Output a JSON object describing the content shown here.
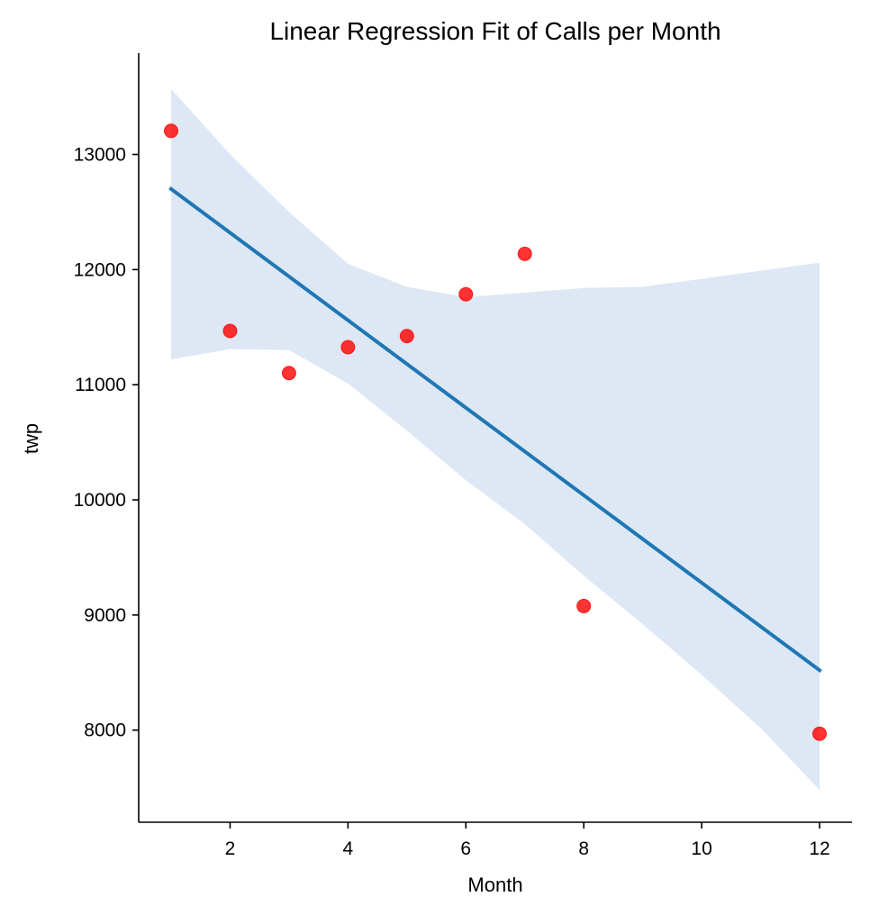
{
  "chart_data": {
    "type": "scatter",
    "title": "Linear Regression Fit of Calls per Month",
    "xlabel": "Month",
    "ylabel": "twp",
    "xlim": [
      0.45,
      12.55
    ],
    "ylim": [
      7200,
      13880
    ],
    "xticks": [
      2,
      4,
      6,
      8,
      10,
      12
    ],
    "yticks": [
      8000,
      9000,
      10000,
      11000,
      12000,
      13000
    ],
    "grid": false,
    "legend": "none",
    "colors": {
      "points": "#ff0000",
      "fit_line": "#1f77b4",
      "confidence_band": "#c6d9ec"
    },
    "series": [
      {
        "x": [
          1,
          2,
          3,
          4,
          5,
          6,
          7,
          8,
          12
        ],
        "y": [
          13205,
          11467,
          11101,
          11326,
          11423,
          11786,
          12137,
          9078,
          7969
        ]
      }
    ],
    "regression": {
      "x": [
        1,
        12
      ],
      "y": [
        12700,
        8520
      ]
    },
    "confidence_band": {
      "x": [
        1,
        2,
        3,
        4,
        5,
        6,
        7,
        8,
        9,
        10,
        11,
        12
      ],
      "upper": [
        13570,
        13000,
        12500,
        12050,
        11850,
        11760,
        11800,
        11840,
        11850,
        11920,
        11990,
        12060
      ],
      "lower": [
        11220,
        11310,
        11300,
        11010,
        10600,
        10170,
        9790,
        9340,
        8920,
        8480,
        8020,
        7480
      ]
    }
  }
}
